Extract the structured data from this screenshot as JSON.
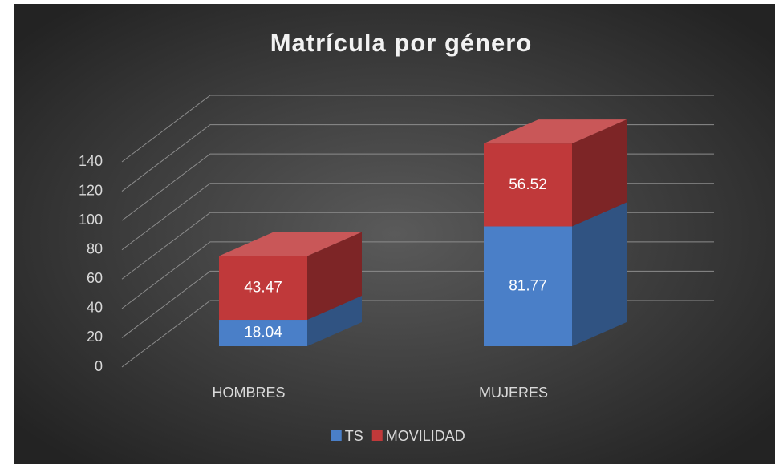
{
  "chart_data": {
    "type": "bar3d_stacked",
    "title": "Matrícula por género",
    "categories": [
      "HOMBRES",
      "MUJERES"
    ],
    "series": [
      {
        "name": "TS",
        "color": "#4a7fc8",
        "values": [
          18.04,
          81.77
        ]
      },
      {
        "name": "MOVILIDAD",
        "color": "#c0393a",
        "values": [
          43.47,
          56.52
        ]
      }
    ],
    "ylim": [
      0,
      140
    ],
    "yticks": [
      0,
      20,
      40,
      60,
      80,
      100,
      120,
      140
    ],
    "grid": true,
    "legend": "bottom"
  }
}
